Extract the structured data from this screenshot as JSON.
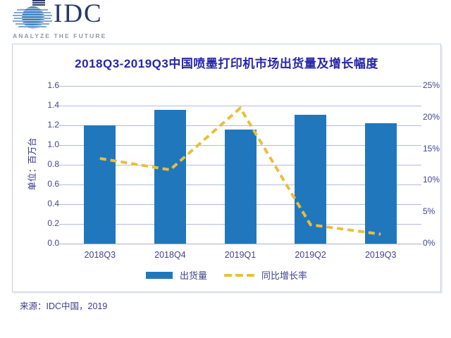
{
  "logo": {
    "brand": "IDC",
    "tagline": "ANALYZE THE FUTURE"
  },
  "chart_data": {
    "type": "bar",
    "combo": "bar+line",
    "title": "2018Q3-2019Q3中国喷墨打印机市场出货量及增长幅度",
    "categories": [
      "2018Q3",
      "2018Q4",
      "2019Q1",
      "2019Q2",
      "2019Q3"
    ],
    "series": [
      {
        "name": "出货量",
        "type": "bar",
        "axis": "left",
        "color": "#2177BC",
        "values": [
          1.2,
          1.36,
          1.16,
          1.31,
          1.22
        ]
      },
      {
        "name": "同比增长率",
        "type": "line",
        "style": "dashed",
        "axis": "right",
        "color": "#E7BF3B",
        "unit": "%",
        "values": [
          13.5,
          11.7,
          21.5,
          3.0,
          1.5
        ]
      }
    ],
    "left_axis": {
      "label": "单位：百万台",
      "range": [
        0,
        1.6
      ],
      "ticks": [
        "0.0",
        "0.2",
        "0.4",
        "0.6",
        "0.8",
        "1.0",
        "1.2",
        "1.4",
        "1.6"
      ]
    },
    "right_axis": {
      "range": [
        0,
        25
      ],
      "ticks": [
        "0%",
        "5%",
        "10%",
        "15%",
        "20%",
        "25%"
      ]
    },
    "legend": [
      "出货量",
      "同比增长率"
    ],
    "grid": true,
    "legend_position": "bottom"
  },
  "source": "来源：IDC中国，2019",
  "colors": {
    "bar": "#2177BC",
    "line": "#E7BF3B",
    "title": "#2626AC",
    "axis_text": "#41458F",
    "gridline": "#B4BADF",
    "panel_border": "#C7CBE0"
  }
}
